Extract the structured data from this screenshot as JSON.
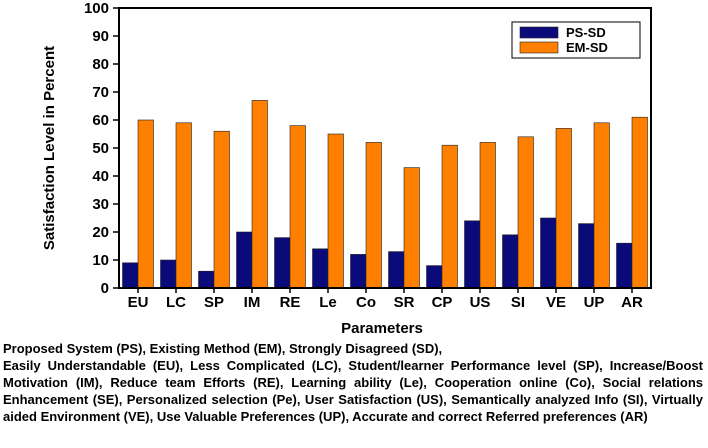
{
  "chart_data": {
    "type": "bar",
    "ylabel": "Satisfaction Level in Percent",
    "xlabel": "Parameters",
    "ylim": [
      0,
      100
    ],
    "yticks": [
      0,
      10,
      20,
      30,
      40,
      50,
      60,
      70,
      80,
      90,
      100
    ],
    "categories": [
      "EU",
      "LC",
      "SP",
      "IM",
      "RE",
      "Le",
      "Co",
      "SR",
      "CP",
      "US",
      "SI",
      "VE",
      "UP",
      "AR"
    ],
    "series": [
      {
        "name": "PS-SD",
        "color": "#0a0a7a",
        "values": [
          9,
          10,
          6,
          20,
          18,
          14,
          12,
          13,
          8,
          24,
          19,
          25,
          23,
          16
        ]
      },
      {
        "name": "EM-SD",
        "color": "#ff8000",
        "values": [
          60,
          59,
          56,
          67,
          58,
          55,
          52,
          43,
          51,
          52,
          54,
          57,
          59,
          61
        ]
      }
    ],
    "legend_position": "top-right",
    "grid": false
  },
  "caption": {
    "line1": "Proposed System (PS), Existing Method (EM), Strongly Disagreed (SD),",
    "line2": "Easily Understandable (EU), Less Complicated (LC), Student/learner Performance level (SP), Increase/Boost Motivation (IM), Reduce team Efforts (RE), Learning ability (Le), Cooperation online (Co), Social relations Enhancement (SE), Personalized selection (Pe), User Satisfaction (US), Semantically analyzed Info (SI), Virtually aided Environment (VE), Use Valuable Preferences (UP), Accurate and correct Referred preferences (AR)"
  }
}
